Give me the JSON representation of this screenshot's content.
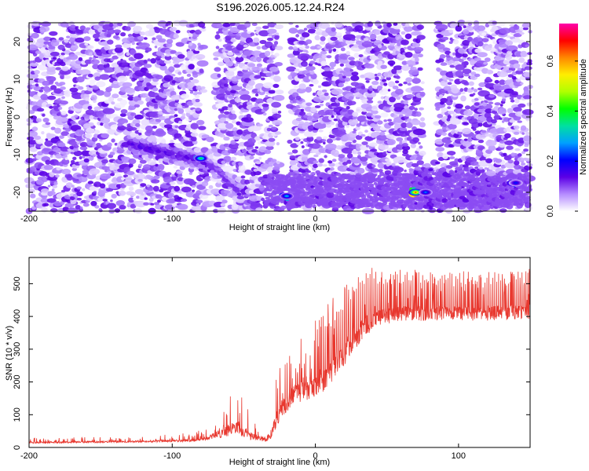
{
  "title": "S196.2026.005.12.24.R24",
  "chart_data": [
    {
      "type": "heatmap",
      "xlabel": "Height of straight line (km)",
      "ylabel": "Frequency (Hz)",
      "xlim": [
        -200,
        150
      ],
      "ylim": [
        -25,
        25
      ],
      "xticks": [
        -200,
        -100,
        0,
        100
      ],
      "yticks": [
        -20,
        -10,
        0,
        10,
        20
      ],
      "colorbar": {
        "label": "Normalized spectral amplitude",
        "range": [
          0,
          0.75
        ],
        "ticks": [
          0.0,
          0.2,
          0.4,
          0.6
        ],
        "colors": [
          "#ffffff",
          "#b58cff",
          "#5b00e6",
          "#0000ff",
          "#00a0ff",
          "#00e0a0",
          "#00ff00",
          "#b0ff00",
          "#ffee00",
          "#ff8800",
          "#ff0000",
          "#ff00aa"
        ]
      },
      "features": [
        {
          "kind": "background",
          "x_range": [
            -200,
            150
          ],
          "f_range": [
            -25,
            25
          ],
          "amplitude": 0.05
        },
        {
          "kind": "track",
          "x_range": [
            -130,
            -75
          ],
          "f_range": [
            -7,
            -12
          ],
          "amplitude": 0.15
        },
        {
          "kind": "track",
          "x_range": [
            -75,
            -40
          ],
          "f_range": [
            -12,
            -24
          ],
          "amplitude": 0.12
        },
        {
          "kind": "band",
          "x_range": [
            -35,
            150
          ],
          "f_range": [
            -24,
            -15
          ],
          "amplitude": 0.1
        },
        {
          "kind": "peak",
          "x": -80,
          "f": -11,
          "amplitude": 0.45
        },
        {
          "kind": "peak",
          "x": -20,
          "f": -21,
          "amplitude": 0.35
        },
        {
          "kind": "peak",
          "x": 70,
          "f": -20,
          "amplitude": 0.75
        },
        {
          "kind": "peak",
          "x": 77,
          "f": -20,
          "amplitude": 0.3
        },
        {
          "kind": "peak",
          "x": 140,
          "f": -17.5,
          "amplitude": 0.25
        }
      ]
    },
    {
      "type": "line",
      "xlabel": "Height of straight line (km)",
      "ylabel": "SNR (10 * v/v)",
      "xlim": [
        -200,
        150
      ],
      "ylim": [
        0,
        580
      ],
      "xticks": [
        -200,
        -100,
        0,
        100
      ],
      "yticks": [
        0,
        100,
        200,
        300,
        400,
        500
      ],
      "color": "#e8382f",
      "envelope": {
        "x": [
          -200,
          -120,
          -85,
          -75,
          -65,
          -55,
          -45,
          -38,
          -32,
          -25,
          -15,
          -5,
          5,
          15,
          25,
          35,
          45,
          60,
          80,
          100,
          120,
          150
        ],
        "baseline": [
          15,
          18,
          22,
          28,
          45,
          60,
          35,
          25,
          30,
          110,
          160,
          180,
          205,
          250,
          320,
          370,
          400,
          410,
          410,
          410,
          410,
          415
        ],
        "spike_amplitude": [
          15,
          15,
          25,
          35,
          90,
          120,
          70,
          40,
          70,
          160,
          180,
          200,
          220,
          220,
          200,
          180,
          150,
          140,
          130,
          130,
          130,
          130
        ]
      }
    }
  ]
}
